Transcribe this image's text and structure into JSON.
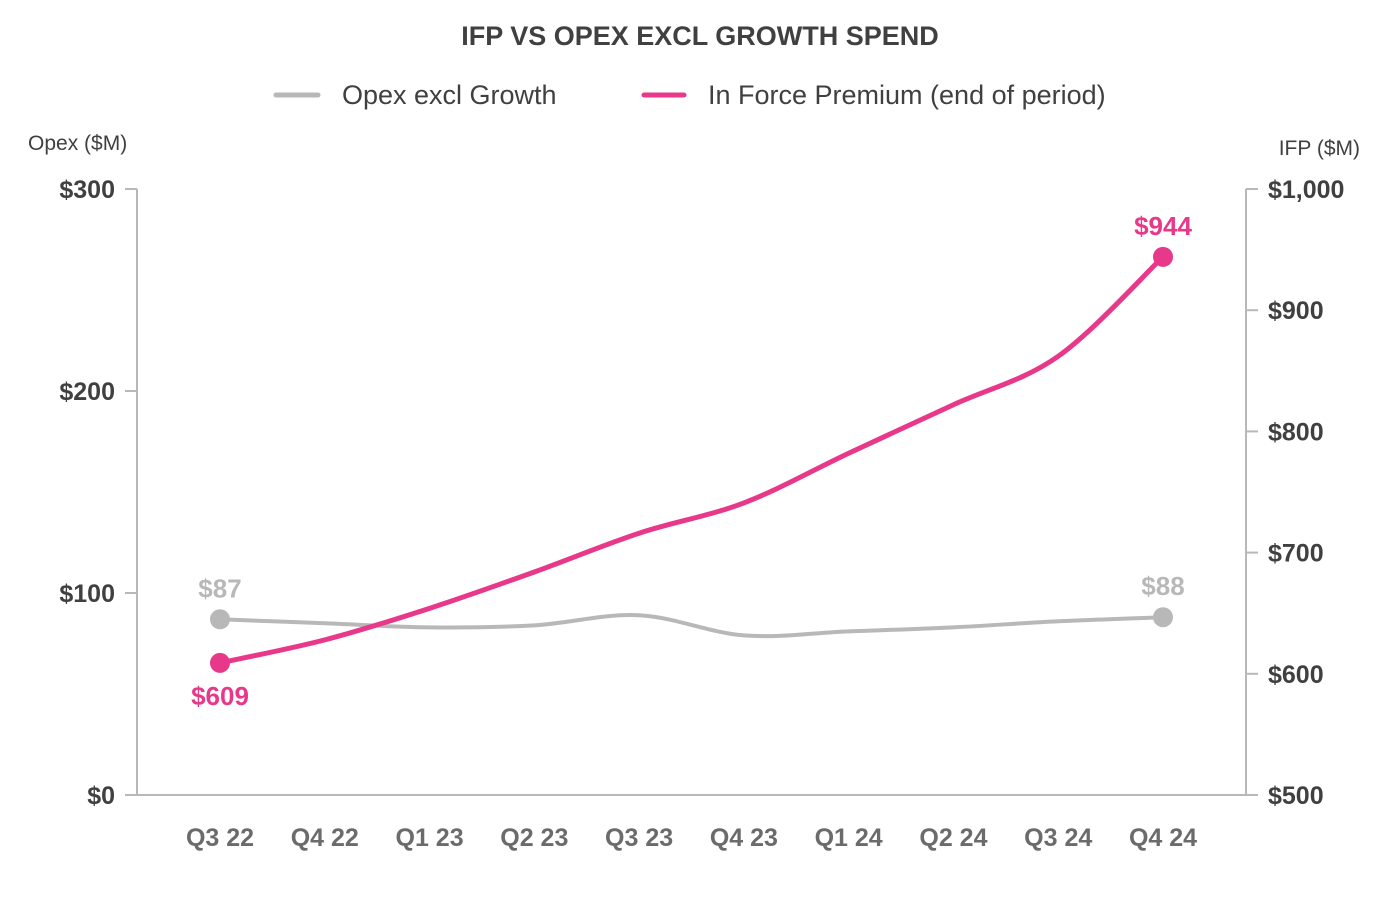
{
  "chart_data": {
    "type": "line",
    "title": "IFP VS OPEX EXCL GROWTH SPEND",
    "legend_position": "top-center",
    "grid": false,
    "categories": [
      "Q3 22",
      "Q4 22",
      "Q1 23",
      "Q2 23",
      "Q3 23",
      "Q4 23",
      "Q1 24",
      "Q2 24",
      "Q3 24",
      "Q4 24"
    ],
    "left_axis": {
      "label": "Opex ($M)",
      "range": [
        0,
        300
      ],
      "ticks": [
        0,
        100,
        200,
        300
      ],
      "tick_labels": [
        "$0",
        "$100",
        "$200",
        "$300"
      ]
    },
    "right_axis": {
      "label": "IFP ($M)",
      "range": [
        500,
        1000
      ],
      "ticks": [
        500,
        600,
        700,
        800,
        900,
        1000
      ],
      "tick_labels": [
        "$500",
        "$600",
        "$700",
        "$800",
        "$900",
        "$1,000"
      ]
    },
    "series": [
      {
        "name": "Opex excl Growth",
        "axis": "left",
        "color": "#b8b8b8",
        "values": [
          87,
          85,
          83,
          84,
          89,
          79,
          81,
          83,
          86,
          88
        ],
        "labels": [
          {
            "index": 0,
            "text": "$87",
            "position": "above"
          },
          {
            "index": 9,
            "text": "$88",
            "position": "above"
          }
        ]
      },
      {
        "name": "In Force Premium (end of period)",
        "axis": "right",
        "color": "#e8388a",
        "values": [
          609,
          628,
          654,
          684,
          716,
          741,
          782,
          822,
          862,
          944
        ],
        "labels": [
          {
            "index": 0,
            "text": "$609",
            "position": "below"
          },
          {
            "index": 9,
            "text": "$944",
            "position": "above"
          }
        ]
      }
    ]
  }
}
